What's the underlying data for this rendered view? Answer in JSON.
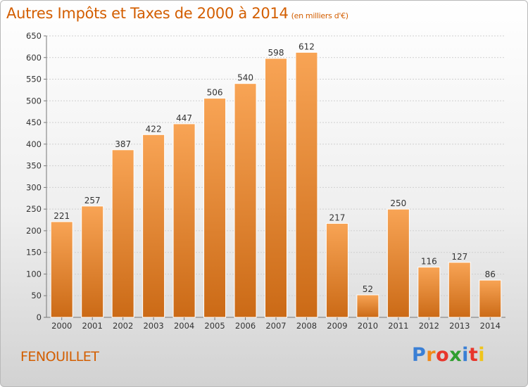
{
  "title": "Autres Impôts et Taxes de 2000 à 2014",
  "subtitle": "(en milliers d'€)",
  "town": "FENOUILLET",
  "logo": {
    "letters": [
      "P",
      "r",
      "o",
      "x",
      "i",
      "t",
      "i"
    ],
    "colors": [
      "#3a7fd5",
      "#f0891a",
      "#e8362c",
      "#2f9e2f",
      "#3a7fd5",
      "#e8362c",
      "#f0c41a"
    ]
  },
  "colors": {
    "bar_top": "#f8a455",
    "bar_bottom": "#cb6a16",
    "text_accent": "#d35e00"
  },
  "chart_data": {
    "type": "bar",
    "categories": [
      "2000",
      "2001",
      "2002",
      "2003",
      "2004",
      "2005",
      "2006",
      "2007",
      "2008",
      "2009",
      "2010",
      "2011",
      "2012",
      "2013",
      "2014"
    ],
    "values": [
      221,
      257,
      387,
      422,
      447,
      506,
      540,
      598,
      612,
      217,
      52,
      250,
      116,
      127,
      86
    ],
    "ylim": [
      0,
      650
    ],
    "yticks": [
      0,
      50,
      100,
      150,
      200,
      250,
      300,
      350,
      400,
      450,
      500,
      550,
      600,
      650
    ],
    "grid": true
  }
}
